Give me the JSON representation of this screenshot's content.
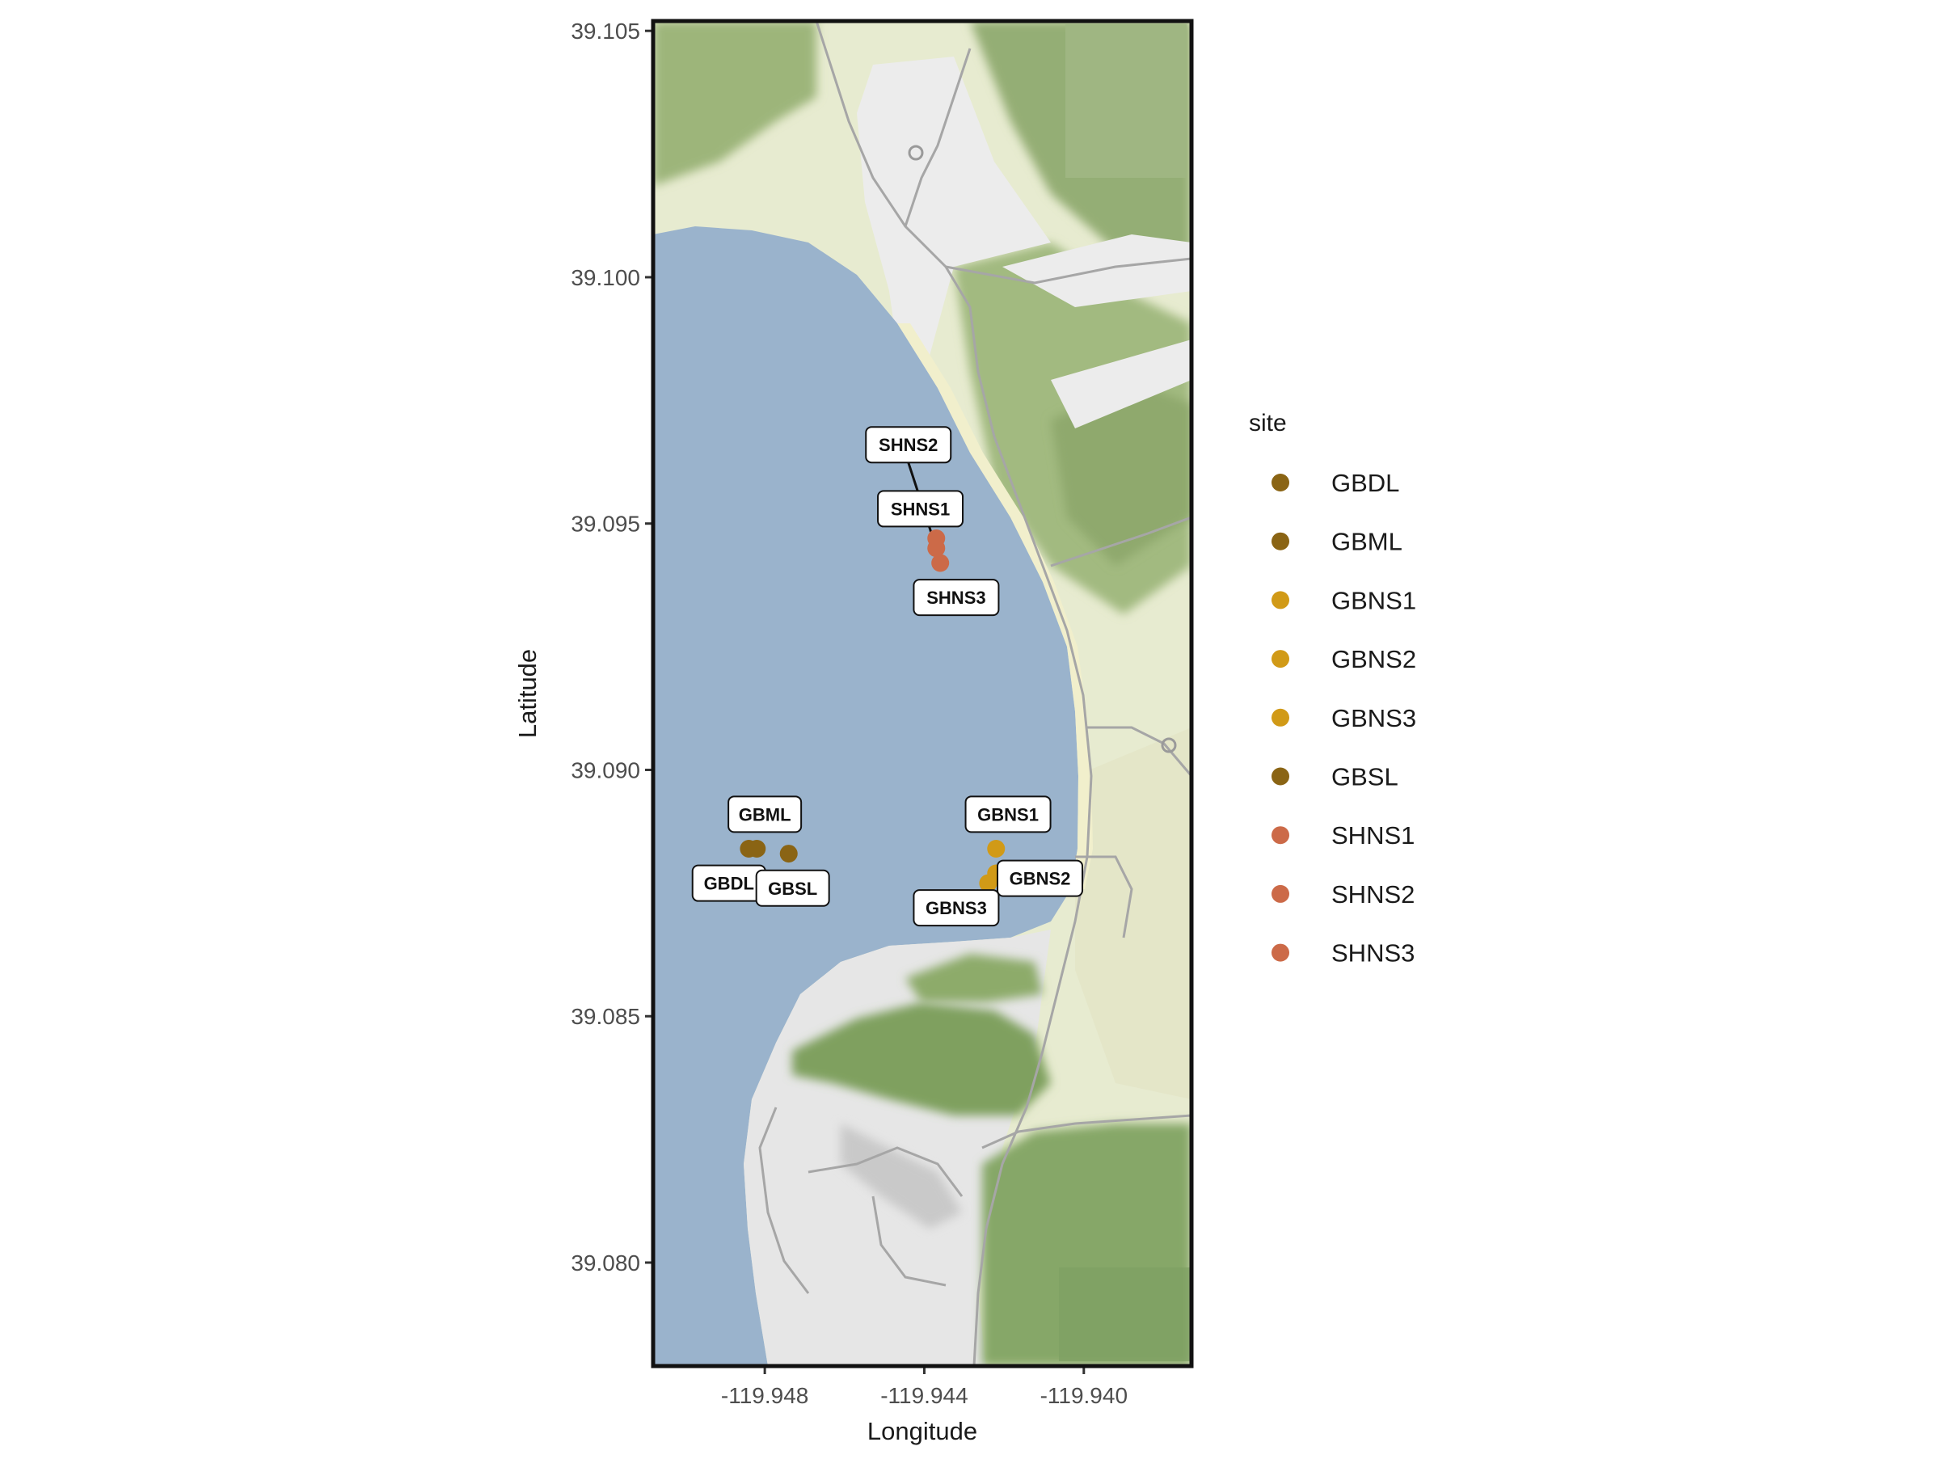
{
  "chart_data": {
    "type": "scatter",
    "basemap": "terrain map tiles",
    "xlabel": "Longitude",
    "ylabel": "Latitude",
    "xlim": [
      -119.9508,
      -119.9373
    ],
    "ylim": [
      39.0779,
      39.1052
    ],
    "x_ticks": [
      {
        "value": -119.948,
        "label": "-119.948"
      },
      {
        "value": -119.944,
        "label": "-119.944"
      },
      {
        "value": -119.94,
        "label": "-119.940"
      }
    ],
    "y_ticks": [
      {
        "value": 39.105,
        "label": "39.105"
      },
      {
        "value": 39.1,
        "label": "39.100"
      },
      {
        "value": 39.095,
        "label": "39.095"
      },
      {
        "value": 39.09,
        "label": "39.090"
      },
      {
        "value": 39.085,
        "label": "39.085"
      },
      {
        "value": 39.08,
        "label": "39.080"
      }
    ],
    "legend": {
      "title": "site",
      "placement": "right",
      "entries": [
        {
          "name": "GBDL",
          "color": "#8a6414"
        },
        {
          "name": "GBML",
          "color": "#8a6414"
        },
        {
          "name": "GBNS1",
          "color": "#d19a17"
        },
        {
          "name": "GBNS2",
          "color": "#d19a17"
        },
        {
          "name": "GBNS3",
          "color": "#d19a17"
        },
        {
          "name": "GBSL",
          "color": "#8a6414"
        },
        {
          "name": "SHNS1",
          "color": "#cc6a48"
        },
        {
          "name": "SHNS2",
          "color": "#cc6a48"
        },
        {
          "name": "SHNS3",
          "color": "#cc6a48"
        }
      ]
    },
    "points": [
      {
        "site": "GBDL",
        "lon": -119.9484,
        "lat": 39.0884,
        "color": "#8a6414",
        "label": "GBDL",
        "label_lon": -119.9489,
        "label_lat": 39.0877,
        "leader": false
      },
      {
        "site": "GBML",
        "lon": -119.9482,
        "lat": 39.0884,
        "color": "#8a6414",
        "label": "GBML",
        "label_lon": -119.948,
        "label_lat": 39.0891,
        "leader": false
      },
      {
        "site": "GBSL",
        "lon": -119.9474,
        "lat": 39.0883,
        "color": "#8a6414",
        "label": "GBSL",
        "label_lon": -119.9473,
        "label_lat": 39.0876,
        "leader": false
      },
      {
        "site": "GBNS1",
        "lon": -119.9422,
        "lat": 39.0884,
        "color": "#d19a17",
        "label": "GBNS1",
        "label_lon": -119.9419,
        "label_lat": 39.0891,
        "leader": false
      },
      {
        "site": "GBNS2",
        "lon": -119.9422,
        "lat": 39.0879,
        "color": "#d19a17",
        "label": "GBNS2",
        "label_lon": -119.9411,
        "label_lat": 39.0878,
        "leader": false
      },
      {
        "site": "GBNS3",
        "lon": -119.9424,
        "lat": 39.0877,
        "color": "#d19a17",
        "label": "GBNS3",
        "label_lon": -119.9432,
        "label_lat": 39.0872,
        "leader": false
      },
      {
        "site": "SHNS1",
        "lon": -119.9437,
        "lat": 39.0947,
        "color": "#cc6a48",
        "label": "SHNS1",
        "label_lon": -119.9441,
        "label_lat": 39.0953,
        "leader": false
      },
      {
        "site": "SHNS2",
        "lon": -119.9437,
        "lat": 39.0945,
        "color": "#cc6a48",
        "label": "SHNS2",
        "label_lon": -119.9444,
        "label_lat": 39.0966,
        "leader": true
      },
      {
        "site": "SHNS3",
        "lon": -119.9436,
        "lat": 39.0942,
        "color": "#cc6a48",
        "label": "SHNS3",
        "label_lon": -119.9432,
        "label_lat": 39.0935,
        "leader": false
      }
    ]
  }
}
